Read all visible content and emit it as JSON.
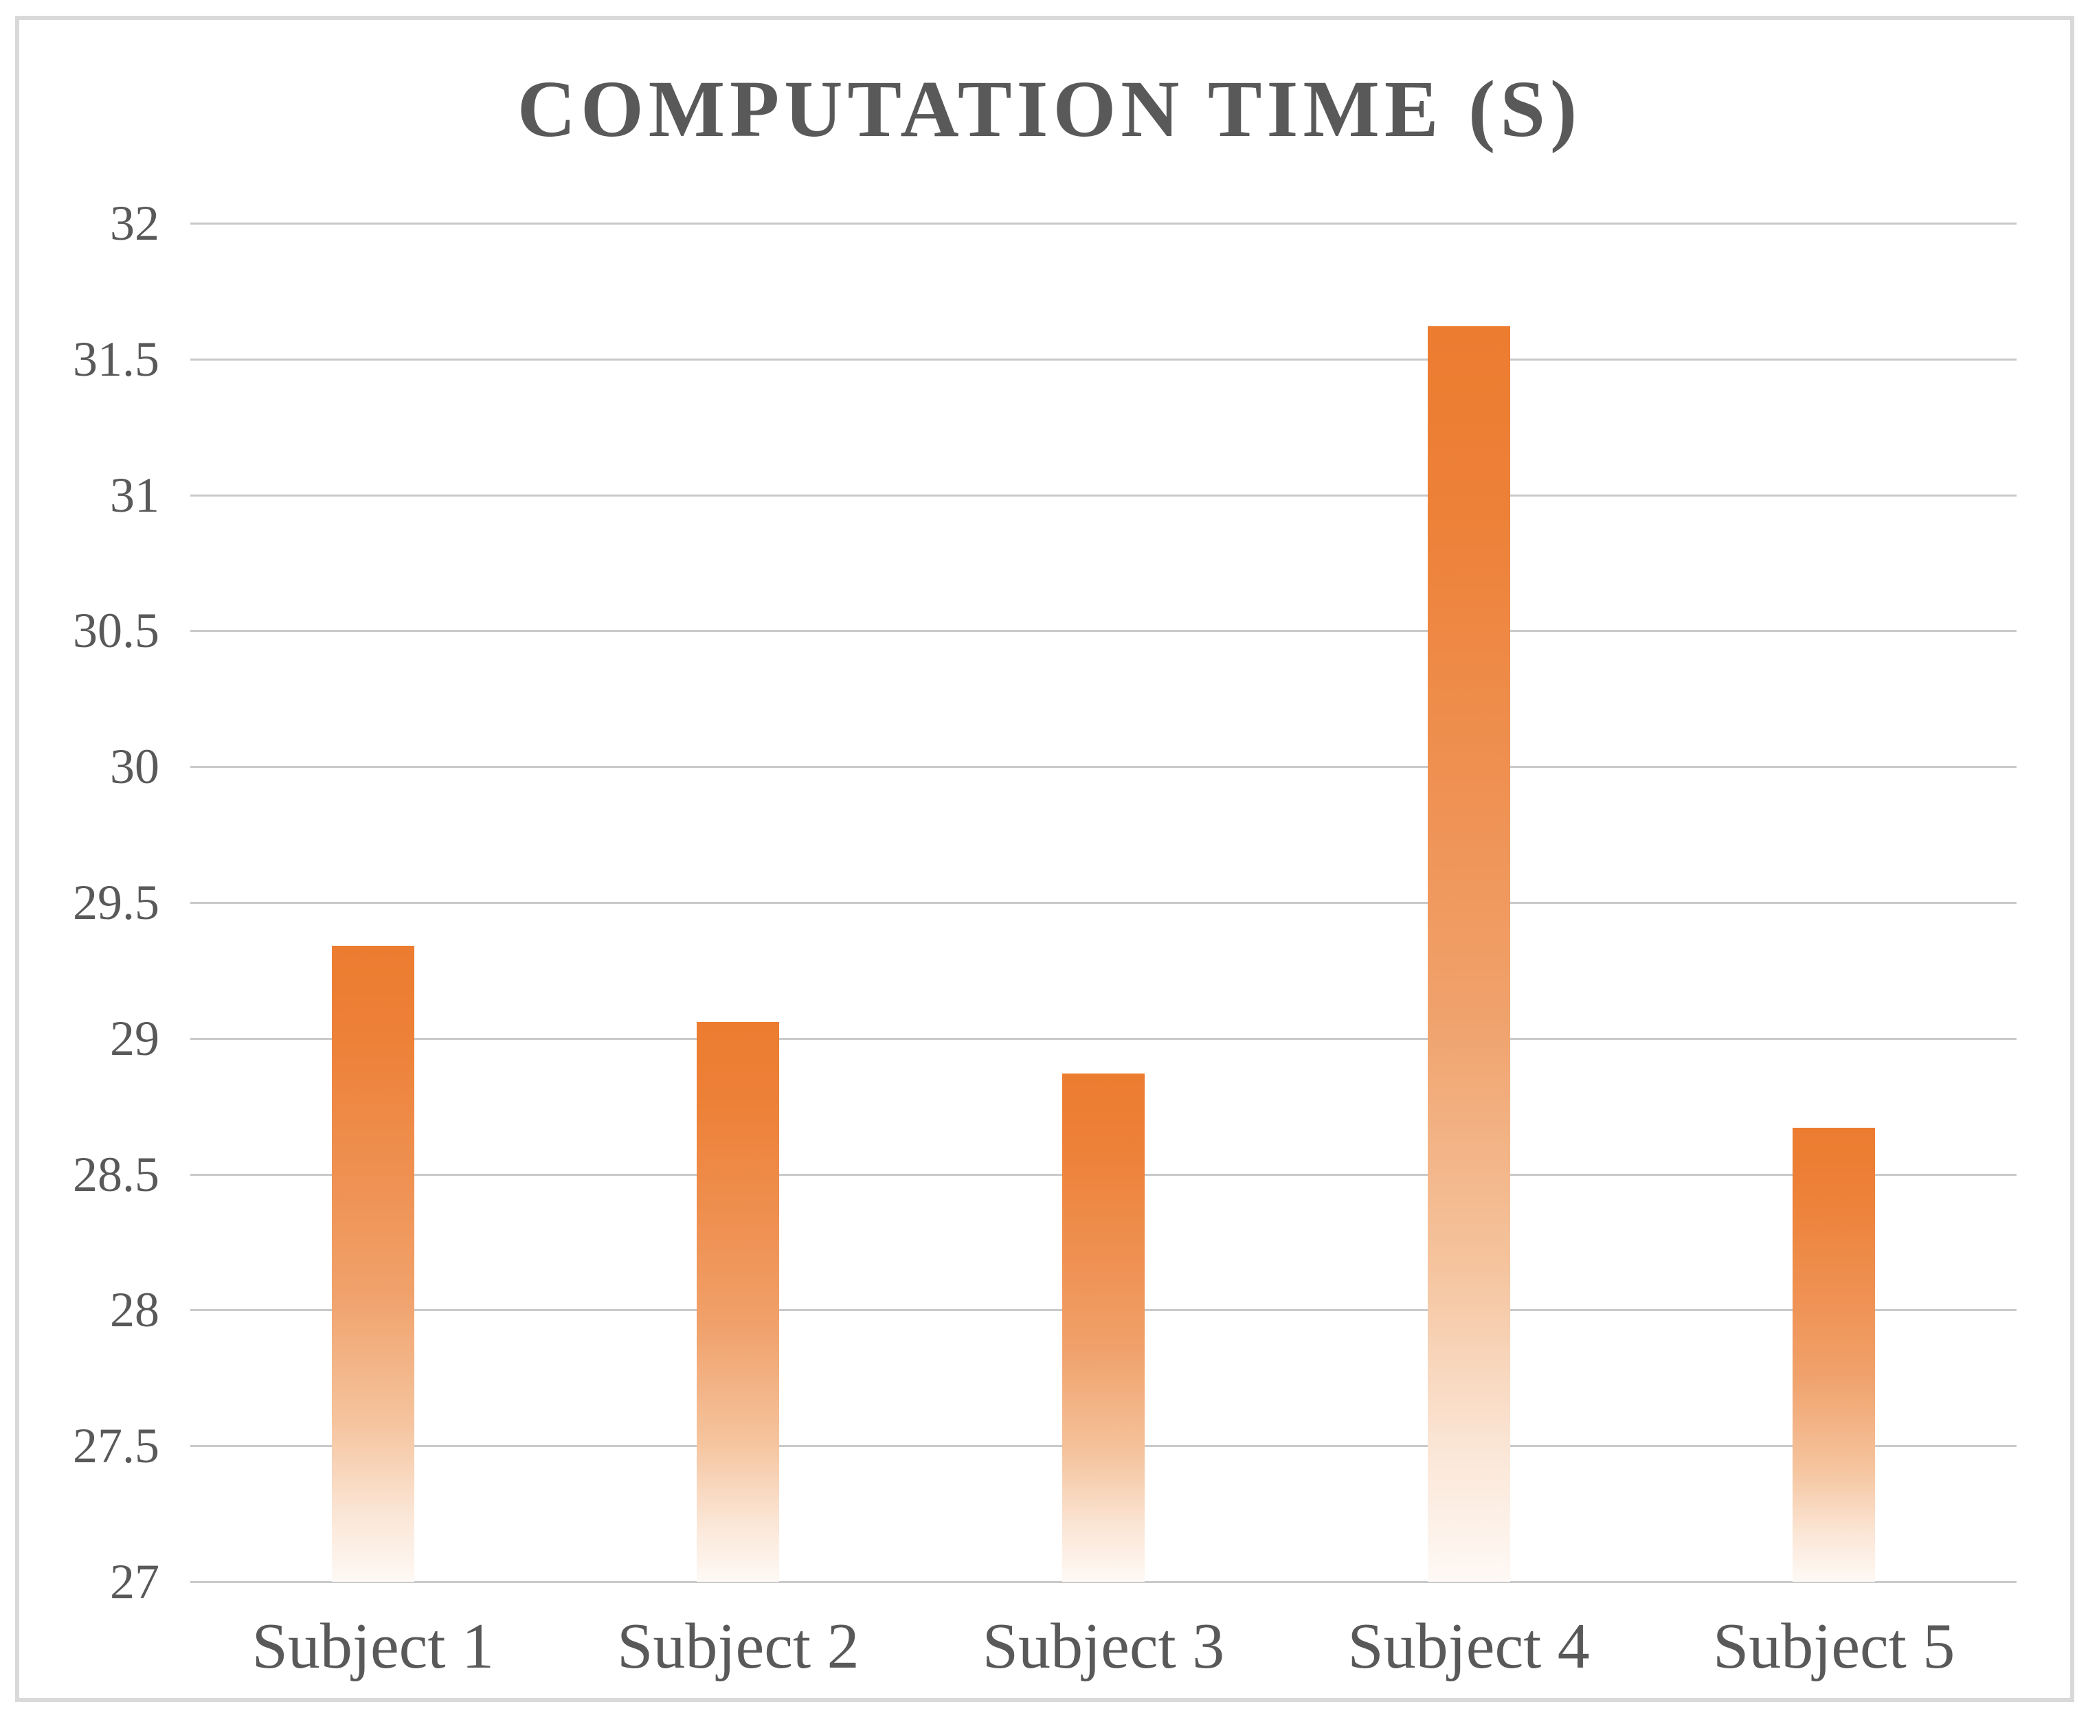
{
  "chart_title": "COMPUTATION TIME (S)",
  "colors": {
    "bar_top": "#EC7C30",
    "bar_fade_bottom": "#FFFFFF",
    "gridline": "#C9C9C9",
    "text": "#595959",
    "frame_border": "#D9D9D9",
    "background": "#FFFFFF"
  },
  "chart_data": {
    "type": "bar",
    "title": "COMPUTATION TIME (S)",
    "categories": [
      "Subject 1",
      "Subject 2",
      "Subject 3",
      "Subject 4",
      "Subject 5"
    ],
    "values": [
      29.34,
      29.06,
      28.87,
      31.62,
      28.67
    ],
    "yticks": [
      "32",
      "31.5",
      "31",
      "30.5",
      "30",
      "29.5",
      "29",
      "28.5",
      "28",
      "27.5",
      "27"
    ],
    "ylim": [
      27,
      32
    ],
    "y_tick_step": 0.5,
    "xlabel": "",
    "ylabel": "",
    "grid": "horizontal",
    "legend": "none",
    "bar_fill": "vertical gradient, solid orange at top fading to white at baseline"
  }
}
